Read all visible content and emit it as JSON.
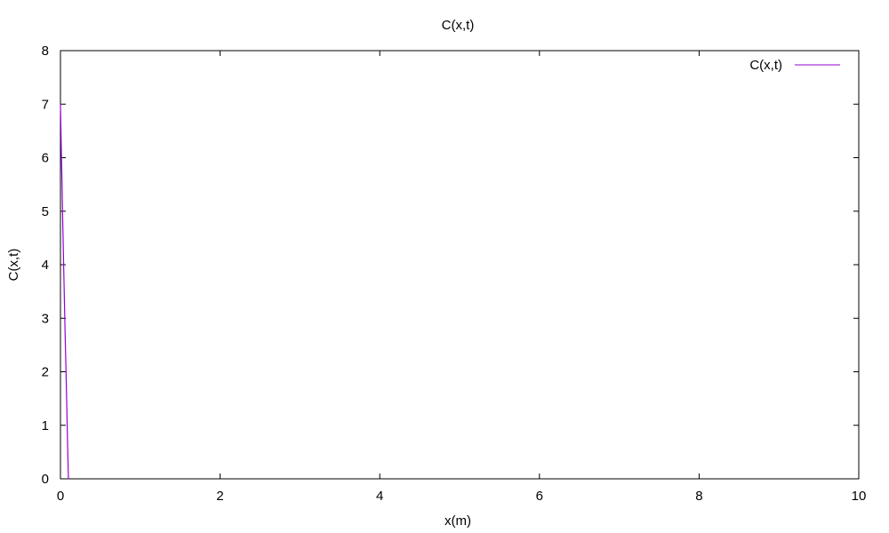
{
  "chart_data": {
    "type": "line",
    "title": "C(x,t)",
    "xlabel": "x(m)",
    "ylabel": "C(x,t)",
    "xlim": [
      0,
      10
    ],
    "ylim": [
      0,
      8
    ],
    "xticks": [
      "0",
      "2",
      "4",
      "6",
      "8",
      "10"
    ],
    "yticks": [
      "0",
      "1",
      "2",
      "3",
      "4",
      "5",
      "6",
      "7",
      "8"
    ],
    "grid": false,
    "legend_position": "top-right",
    "series": [
      {
        "name": "C(x,t)",
        "color": "#9400d3",
        "x": [
          0.0,
          0.01,
          0.02,
          0.03,
          0.04,
          0.05,
          0.06,
          0.07,
          0.08,
          0.09,
          0.1
        ],
        "y": [
          7.0,
          6.2,
          5.5,
          4.7,
          4.0,
          3.3,
          2.6,
          2.0,
          1.3,
          0.6,
          0.0
        ]
      }
    ]
  }
}
